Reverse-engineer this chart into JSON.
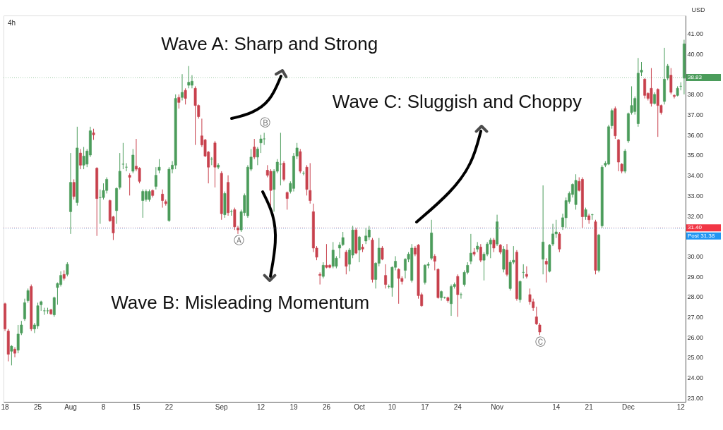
{
  "chart_data": {
    "type": "candlestick",
    "title": "4h",
    "ylabel": "USD",
    "categories": [
      "18",
      null,
      null,
      null,
      null,
      null,
      null,
      null,
      null,
      null,
      "25",
      null,
      null,
      null,
      null,
      null,
      null,
      null,
      null,
      null,
      "Aug",
      null,
      null,
      null,
      null,
      null,
      null,
      null,
      null,
      null,
      "8",
      null,
      null,
      null,
      null,
      null,
      null,
      null,
      null,
      null,
      "15",
      null,
      null,
      null,
      null,
      null,
      null,
      null,
      null,
      null,
      "22",
      null,
      null,
      null,
      null,
      null,
      null,
      null,
      null,
      null,
      null,
      null,
      null,
      null,
      null,
      null,
      "Sep",
      null,
      null,
      null,
      null,
      null,
      null,
      null,
      null,
      null,
      null,
      null,
      "12",
      null,
      null,
      null,
      null,
      null,
      null,
      null,
      null,
      null,
      "19",
      null,
      null,
      null,
      null,
      null,
      null,
      null,
      null,
      null,
      "26",
      null,
      null,
      null,
      null,
      null,
      null,
      null,
      null,
      null,
      "Oct",
      null,
      null,
      null,
      null,
      null,
      null,
      null,
      null,
      null,
      "10",
      null,
      null,
      null,
      null,
      null,
      null,
      null,
      null,
      null,
      "17",
      null,
      null,
      null,
      null,
      null,
      null,
      null,
      null,
      null,
      "24",
      null,
      null,
      null,
      null,
      null,
      null,
      null,
      null,
      null,
      null,
      null,
      "Nov",
      null,
      null,
      null,
      null,
      null,
      null,
      null,
      null,
      null,
      null,
      null,
      null,
      null,
      null,
      null,
      null,
      null,
      "14",
      null,
      null,
      null,
      null,
      null,
      null,
      null,
      null,
      null,
      "21",
      null,
      null,
      null,
      null,
      null,
      null,
      null,
      null,
      null,
      null,
      null,
      "Dec",
      null,
      null,
      null,
      null,
      null,
      null,
      null,
      null,
      null,
      null,
      null,
      null,
      null,
      null,
      null,
      "12",
      null
    ],
    "ohlc": [
      [
        27.65,
        27.7,
        26.3,
        26.4
      ],
      [
        26.3,
        26.4,
        24.8,
        25.15
      ],
      [
        25.3,
        25.6,
        24.6,
        25.55
      ],
      [
        25.4,
        25.5,
        25.0,
        25.2
      ],
      [
        25.35,
        26.6,
        25.2,
        26.15
      ],
      [
        26.2,
        26.8,
        26.1,
        26.6
      ],
      [
        26.9,
        27.9,
        26.8,
        27.7
      ],
      [
        27.8,
        28.4,
        27.7,
        28.3
      ],
      [
        28.5,
        28.6,
        26.3,
        26.4
      ],
      [
        26.4,
        26.7,
        26.2,
        26.6
      ],
      [
        26.55,
        27.7,
        26.4,
        27.55
      ],
      [
        27.6,
        27.8,
        27.3,
        27.75
      ],
      [
        27.3,
        27.45,
        27.1,
        27.3
      ],
      [
        27.3,
        27.45,
        27.15,
        27.3
      ],
      [
        27.35,
        27.4,
        27.1,
        27.15
      ],
      [
        27.1,
        28.0,
        27.0,
        27.95
      ],
      [
        28.45,
        28.7,
        27.6,
        28.65
      ],
      [
        28.6,
        29.25,
        28.5,
        29.05
      ],
      [
        29.1,
        29.3,
        28.8,
        28.9
      ],
      [
        29.1,
        29.7,
        29.0,
        29.6
      ],
      [
        32.2,
        35.1,
        31.1,
        33.65
      ],
      [
        33.65,
        33.8,
        32.8,
        32.95
      ],
      [
        32.65,
        36.4,
        32.5,
        35.35
      ],
      [
        35.1,
        35.3,
        34.3,
        34.5
      ],
      [
        34.5,
        35.4,
        34.3,
        34.95
      ],
      [
        34.55,
        35.3,
        34.4,
        35.2
      ],
      [
        35.0,
        36.4,
        34.9,
        36.2
      ],
      [
        36.1,
        36.3,
        35.75,
        36.0
      ],
      [
        34.35,
        34.4,
        31.0,
        32.85
      ],
      [
        32.9,
        33.3,
        31.6,
        32.9
      ],
      [
        32.9,
        33.6,
        32.8,
        33.25
      ],
      [
        33.25,
        33.9,
        33.1,
        33.8
      ],
      [
        32.75,
        32.8,
        31.7,
        31.75
      ],
      [
        31.95,
        32.0,
        30.8,
        31.15
      ],
      [
        32.25,
        33.4,
        31.6,
        33.35
      ],
      [
        33.4,
        35.1,
        33.3,
        34.2
      ],
      [
        34.55,
        35.6,
        34.3,
        34.55
      ],
      [
        34.4,
        34.6,
        34.2,
        34.4
      ],
      [
        34.0,
        34.1,
        33.0,
        33.9
      ],
      [
        34.2,
        35.3,
        34.1,
        35.0
      ],
      [
        34.45,
        35.8,
        34.2,
        34.3
      ],
      [
        34.35,
        34.4,
        33.6,
        33.7
      ],
      [
        32.75,
        33.3,
        31.9,
        33.2
      ],
      [
        32.8,
        33.3,
        32.7,
        33.2
      ],
      [
        32.8,
        33.3,
        32.7,
        33.2
      ],
      [
        33.25,
        33.3,
        32.9,
        33.0
      ],
      [
        33.45,
        34.4,
        33.3,
        34.0
      ],
      [
        34.25,
        34.8,
        34.1,
        34.4
      ],
      [
        33.07,
        33.3,
        32.4,
        32.75
      ],
      [
        32.7,
        32.8,
        32.5,
        32.6
      ],
      [
        31.76,
        34.4,
        31.7,
        34.3
      ],
      [
        34.3,
        34.7,
        34.1,
        34.5
      ],
      [
        34.5,
        38.0,
        34.3,
        37.8
      ],
      [
        37.85,
        38.0,
        37.3,
        37.6
      ],
      [
        37.85,
        39.0,
        37.7,
        38.1
      ],
      [
        38.2,
        38.3,
        37.5,
        37.8
      ],
      [
        38.45,
        39.4,
        38.3,
        38.6
      ],
      [
        38.45,
        38.95,
        38.3,
        38.65
      ],
      [
        38.3,
        38.4,
        35.5,
        37.45
      ],
      [
        37.45,
        37.5,
        36.8,
        36.9
      ],
      [
        35.95,
        36.8,
        35.4,
        35.5
      ],
      [
        35.75,
        35.8,
        34.9,
        34.95
      ],
      [
        35.15,
        35.2,
        33.6,
        34.4
      ],
      [
        34.8,
        34.9,
        34.5,
        34.8
      ],
      [
        35.6,
        35.7,
        33.4,
        34.4
      ],
      [
        34.4,
        34.6,
        34.3,
        34.5
      ],
      [
        34.1,
        34.2,
        31.8,
        32.1
      ],
      [
        32.05,
        33.2,
        31.9,
        33.1
      ],
      [
        33.65,
        34.0,
        32.0,
        32.15
      ],
      [
        32.2,
        32.3,
        32.0,
        32.2
      ],
      [
        32.3,
        32.4,
        31.3,
        31.45
      ],
      [
        31.4,
        31.5,
        31.1,
        31.3
      ],
      [
        31.3,
        32.3,
        31.2,
        32.2
      ],
      [
        32.15,
        33.1,
        32.0,
        33.0
      ],
      [
        32.0,
        34.5,
        31.9,
        34.4
      ],
      [
        34.3,
        35.3,
        34.2,
        34.9
      ],
      [
        35.4,
        35.8,
        34.8,
        34.9
      ],
      [
        34.9,
        35.4,
        34.5,
        35.3
      ],
      [
        35.6,
        36.0,
        35.1,
        35.8
      ],
      [
        35.8,
        36.1,
        35.5,
        35.8
      ],
      [
        34.25,
        34.5,
        33.9,
        34.0
      ],
      [
        34.2,
        34.3,
        32.5,
        33.25
      ],
      [
        33.3,
        34.3,
        32.2,
        34.2
      ],
      [
        34.2,
        34.8,
        34.1,
        34.65
      ],
      [
        34.55,
        36.1,
        33.5,
        34.55
      ],
      [
        34.6,
        34.7,
        33.7,
        33.8
      ],
      [
        33.15,
        33.2,
        32.3,
        32.85
      ],
      [
        33.2,
        33.7,
        33.1,
        33.6
      ],
      [
        33.35,
        35.1,
        33.2,
        34.95
      ],
      [
        34.95,
        35.6,
        34.8,
        35.35
      ],
      [
        35.17,
        35.3,
        34.1,
        34.2
      ],
      [
        34.1,
        34.2,
        34.0,
        34.1
      ],
      [
        34.4,
        34.5,
        33.0,
        33.3
      ],
      [
        33.25,
        34.6,
        32.6,
        32.75
      ],
      [
        32.2,
        32.6,
        30.2,
        30.4
      ],
      [
        30.4,
        30.5,
        29.8,
        29.95
      ],
      [
        29.1,
        29.2,
        28.6,
        29.05
      ],
      [
        29.0,
        29.7,
        28.9,
        29.55
      ],
      [
        29.55,
        30.6,
        29.4,
        29.45
      ],
      [
        29.55,
        29.6,
        29.4,
        29.45
      ],
      [
        29.5,
        30.7,
        29.4,
        30.3
      ],
      [
        29.5,
        30.0,
        29.4,
        29.9
      ],
      [
        30.4,
        30.7,
        29.9,
        30.55
      ],
      [
        30.57,
        31.2,
        30.5,
        30.92
      ],
      [
        30.2,
        30.3,
        29.1,
        29.5
      ],
      [
        29.6,
        30.4,
        29.25,
        30.3
      ],
      [
        30.05,
        31.5,
        29.9,
        31.3
      ],
      [
        31.3,
        31.4,
        30.1,
        30.15
      ],
      [
        30.3,
        31.0,
        29.7,
        30.95
      ],
      [
        30.45,
        30.6,
        30.2,
        30.35
      ],
      [
        30.75,
        31.4,
        30.6,
        31.0
      ],
      [
        30.95,
        31.5,
        30.8,
        31.3
      ],
      [
        30.8,
        30.9,
        28.7,
        28.85
      ],
      [
        28.85,
        29.7,
        28.4,
        29.65
      ],
      [
        29.65,
        30.9,
        29.5,
        30.4
      ],
      [
        30.4,
        30.5,
        29.8,
        29.85
      ],
      [
        29.05,
        29.6,
        28.4,
        28.6
      ],
      [
        28.5,
        28.6,
        28.4,
        28.5
      ],
      [
        28.45,
        29.5,
        28.0,
        29.45
      ],
      [
        29.45,
        30.0,
        29.3,
        29.75
      ],
      [
        29.35,
        29.4,
        27.65,
        28.9
      ],
      [
        28.9,
        29.0,
        28.6,
        28.75
      ],
      [
        29.3,
        29.9,
        28.9,
        29.85
      ],
      [
        29.85,
        30.2,
        29.7,
        30.1
      ],
      [
        28.8,
        30.6,
        28.7,
        30.4
      ],
      [
        30.4,
        30.5,
        30.0,
        30.1
      ],
      [
        30.55,
        30.6,
        27.9,
        28.05
      ],
      [
        28.1,
        28.2,
        27.5,
        27.55
      ],
      [
        28.7,
        29.6,
        28.6,
        29.55
      ],
      [
        29.55,
        29.7,
        29.4,
        29.6
      ],
      [
        29.9,
        31.8,
        29.8,
        31.15
      ],
      [
        30.0,
        30.1,
        29.3,
        29.75
      ],
      [
        29.35,
        29.4,
        27.9,
        27.95
      ],
      [
        27.95,
        28.3,
        27.8,
        28.25
      ],
      [
        27.95,
        28.0,
        27.9,
        27.95
      ],
      [
        27.95,
        28.0,
        27.7,
        27.8
      ],
      [
        27.65,
        28.6,
        27.05,
        28.5
      ],
      [
        28.5,
        28.7,
        28.4,
        28.6
      ],
      [
        29.0,
        29.1,
        27.0,
        28.1
      ],
      [
        28.1,
        28.2,
        27.9,
        28.1
      ],
      [
        28.6,
        29.3,
        28.5,
        29.2
      ],
      [
        29.2,
        29.7,
        29.1,
        29.55
      ],
      [
        29.75,
        31.1,
        29.6,
        30.15
      ],
      [
        30.2,
        30.4,
        30.0,
        30.1
      ],
      [
        30.35,
        30.7,
        30.2,
        30.5
      ],
      [
        30.45,
        30.6,
        29.7,
        29.8
      ],
      [
        29.8,
        30.2,
        28.8,
        30.1
      ],
      [
        30.1,
        30.7,
        30.0,
        30.6
      ],
      [
        30.6,
        30.9,
        29.9,
        30.8
      ],
      [
        30.8,
        30.9,
        30.2,
        30.4
      ],
      [
        30.6,
        32.05,
        30.5,
        31.7
      ],
      [
        30.55,
        30.6,
        30.1,
        30.2
      ],
      [
        29.35,
        30.5,
        29.2,
        30.35
      ],
      [
        30.3,
        30.6,
        29.0,
        29.1
      ],
      [
        28.4,
        29.8,
        28.3,
        29.7
      ],
      [
        29.7,
        30.5,
        29.6,
        29.8
      ],
      [
        30.2,
        30.3,
        27.8,
        27.9
      ],
      [
        27.85,
        28.8,
        27.7,
        28.75
      ],
      [
        29.2,
        29.6,
        28.9,
        29.2
      ],
      [
        29.1,
        29.5,
        28.9,
        29.0
      ],
      [
        28.1,
        28.4,
        27.6,
        27.75
      ],
      [
        27.75,
        27.9,
        27.3,
        27.45
      ],
      [
        27.0,
        27.5,
        26.6,
        26.65
      ],
      [
        26.6,
        26.7,
        26.1,
        26.25
      ],
      [
        29.85,
        33.5,
        29.1,
        30.7
      ],
      [
        29.75,
        29.9,
        28.7,
        29.6
      ],
      [
        29.25,
        30.6,
        29.2,
        30.55
      ],
      [
        30.6,
        31.6,
        30.5,
        31.1
      ],
      [
        31.1,
        31.8,
        30.9,
        31.2
      ],
      [
        31.1,
        31.2,
        30.2,
        30.35
      ],
      [
        31.45,
        32.1,
        31.3,
        31.9
      ],
      [
        31.9,
        32.9,
        31.4,
        32.75
      ],
      [
        32.7,
        33.2,
        32.6,
        33.1
      ],
      [
        33.05,
        33.6,
        32.9,
        33.55
      ],
      [
        32.55,
        34.05,
        32.3,
        33.75
      ],
      [
        33.7,
        33.9,
        33.2,
        33.25
      ],
      [
        33.8,
        33.9,
        31.4,
        31.95
      ],
      [
        31.95,
        32.4,
        31.8,
        32.3
      ],
      [
        32.0,
        32.1,
        31.6,
        31.8
      ],
      [
        32.05,
        32.1,
        31.8,
        32.05
      ],
      [
        31.7,
        31.8,
        29.1,
        29.3
      ],
      [
        29.3,
        31.1,
        29.2,
        31.05
      ],
      [
        31.5,
        34.5,
        31.4,
        34.4
      ],
      [
        34.5,
        34.7,
        34.4,
        34.6
      ],
      [
        34.55,
        36.5,
        34.5,
        36.4
      ],
      [
        36.45,
        37.3,
        36.3,
        37.2
      ],
      [
        37.3,
        37.4,
        35.8,
        35.95
      ],
      [
        35.75,
        35.8,
        34.2,
        34.65
      ],
      [
        34.55,
        34.6,
        34.1,
        34.2
      ],
      [
        34.2,
        35.3,
        34.1,
        35.2
      ],
      [
        35.7,
        37.1,
        35.6,
        37.05
      ],
      [
        37.1,
        38.4,
        37.0,
        37.45
      ],
      [
        37.15,
        37.9,
        37.0,
        37.8
      ],
      [
        36.55,
        39.8,
        36.4,
        39.05
      ],
      [
        39.1,
        39.6,
        38.9,
        39.2
      ],
      [
        38.75,
        38.8,
        37.8,
        37.95
      ],
      [
        38.05,
        38.1,
        37.7,
        37.8
      ],
      [
        38.3,
        39.3,
        37.4,
        37.55
      ],
      [
        37.55,
        38.1,
        37.5,
        38.0
      ],
      [
        38.25,
        38.3,
        35.9,
        37.45
      ],
      [
        37.45,
        37.5,
        37.0,
        37.1
      ],
      [
        37.65,
        40.3,
        37.5,
        38.75
      ],
      [
        38.8,
        39.5,
        38.7,
        39.4
      ],
      [
        38.95,
        39.3,
        38.0,
        38.1
      ],
      [
        37.95,
        38.0,
        37.8,
        37.9
      ],
      [
        37.95,
        38.4,
        37.9,
        38.3
      ],
      [
        38.4,
        38.6,
        38.2,
        38.4
      ],
      [
        38.8,
        40.7,
        38.0,
        40.5
      ]
    ],
    "colors": [
      "#c8414d",
      "#c8414d",
      "#4b9c5b",
      "#c8414d",
      "#4b9c5b",
      "#4b9c5b",
      "#4b9c5b",
      "#4b9c5b",
      "#c8414d",
      "#4b9c5b",
      "#4b9c5b",
      "#4b9c5b",
      "#4b9c5b",
      "#4b9c5b",
      "#c8414d",
      "#4b9c5b",
      "#4b9c5b",
      "#4b9c5b",
      "#c8414d",
      "#4b9c5b",
      "#4b9c5b",
      "#c8414d",
      "#4b9c5b",
      "#c8414d",
      "#4b9c5b",
      "#4b9c5b",
      "#4b9c5b",
      "#c8414d",
      "#c8414d",
      "#4b9c5b",
      "#4b9c5b",
      "#4b9c5b",
      "#c8414d",
      "#c8414d",
      "#4b9c5b",
      "#4b9c5b",
      "#4b9c5b",
      "#4b9c5b",
      "#c8414d",
      "#4b9c5b",
      "#c8414d",
      "#c8414d",
      "#4b9c5b",
      "#4b9c5b",
      "#4b9c5b",
      "#c8414d",
      "#4b9c5b",
      "#4b9c5b",
      "#c8414d",
      "#c8414d",
      "#4b9c5b",
      "#4b9c5b",
      "#4b9c5b",
      "#c8414d",
      "#4b9c5b",
      "#c8414d",
      "#4b9c5b",
      "#4b9c5b",
      "#c8414d",
      "#c8414d",
      "#c8414d",
      "#c8414d",
      "#c8414d",
      "#4b9c5b",
      "#c8414d",
      "#4b9c5b",
      "#c8414d",
      "#4b9c5b",
      "#c8414d",
      "#4b9c5b",
      "#c8414d",
      "#c8414d",
      "#4b9c5b",
      "#4b9c5b",
      "#4b9c5b",
      "#4b9c5b",
      "#c8414d",
      "#4b9c5b",
      "#4b9c5b",
      "#4b9c5b",
      "#c8414d",
      "#c8414d",
      "#4b9c5b",
      "#4b9c5b",
      "#4b9c5b",
      "#c8414d",
      "#c8414d",
      "#4b9c5b",
      "#4b9c5b",
      "#4b9c5b",
      "#c8414d",
      "#4b9c5b",
      "#c8414d",
      "#c8414d",
      "#c8414d",
      "#c8414d",
      "#c8414d",
      "#4b9c5b",
      "#c8414d",
      "#c8414d",
      "#4b9c5b",
      "#4b9c5b",
      "#4b9c5b",
      "#4b9c5b",
      "#c8414d",
      "#4b9c5b",
      "#4b9c5b",
      "#c8414d",
      "#4b9c5b",
      "#c8414d",
      "#4b9c5b",
      "#4b9c5b",
      "#c8414d",
      "#4b9c5b",
      "#4b9c5b",
      "#c8414d",
      "#c8414d",
      "#4b9c5b",
      "#4b9c5b",
      "#4b9c5b",
      "#c8414d",
      "#c8414d",
      "#4b9c5b",
      "#4b9c5b",
      "#4b9c5b",
      "#c8414d",
      "#c8414d",
      "#c8414d",
      "#4b9c5b",
      "#4b9c5b",
      "#4b9c5b",
      "#c8414d",
      "#c8414d",
      "#4b9c5b",
      "#4b9c5b",
      "#c8414d",
      "#4b9c5b",
      "#4b9c5b",
      "#c8414d",
      "#4b9c5b",
      "#4b9c5b",
      "#4b9c5b",
      "#4b9c5b",
      "#c8414d",
      "#4b9c5b",
      "#c8414d",
      "#4b9c5b",
      "#4b9c5b",
      "#4b9c5b",
      "#c8414d",
      "#4b9c5b",
      "#c8414d",
      "#4b9c5b",
      "#c8414d",
      "#4b9c5b",
      "#4b9c5b",
      "#c8414d",
      "#4b9c5b",
      "#4b9c5b",
      "#c8414d",
      "#c8414d",
      "#c8414d",
      "#c8414d",
      "#c8414d",
      "#4b9c5b",
      "#c8414d",
      "#4b9c5b",
      "#4b9c5b",
      "#4b9c5b",
      "#c8414d",
      "#4b9c5b",
      "#4b9c5b",
      "#4b9c5b",
      "#4b9c5b",
      "#4b9c5b",
      "#c8414d",
      "#c8414d",
      "#4b9c5b",
      "#c8414d",
      "#4b9c5b",
      "#c8414d",
      "#4b9c5b",
      "#4b9c5b",
      "#4b9c5b",
      "#4b9c5b",
      "#4b9c5b",
      "#c8414d",
      "#c8414d",
      "#c8414d",
      "#4b9c5b",
      "#4b9c5b",
      "#4b9c5b",
      "#4b9c5b",
      "#4b9c5b",
      "#4b9c5b",
      "#c8414d",
      "#c8414d",
      "#c8414d",
      "#4b9c5b",
      "#c8414d",
      "#c8414d",
      "#4b9c5b",
      "#4b9c5b",
      "#c8414d",
      "#c8414d",
      "#4b9c5b",
      "#4b9c5b",
      "#4b9c5b"
    ],
    "ylim": [
      22.8,
      41.9
    ],
    "yticks": [
      {
        "value": 23,
        "label": "23.00"
      },
      {
        "value": 24,
        "label": "24.00"
      },
      {
        "value": 25,
        "label": "25.00"
      },
      {
        "value": 26,
        "label": "26.00"
      },
      {
        "value": 27,
        "label": "27.00"
      },
      {
        "value": 28,
        "label": "28.00"
      },
      {
        "value": 29,
        "label": "29.00"
      },
      {
        "value": 30,
        "label": "30.00"
      },
      {
        "value": 32,
        "label": "32.00"
      },
      {
        "value": 33,
        "label": "33.00"
      },
      {
        "value": 34,
        "label": "34.00"
      },
      {
        "value": 35,
        "label": "35.00"
      },
      {
        "value": 36,
        "label": "36.00"
      },
      {
        "value": 37,
        "label": "37.00"
      },
      {
        "value": 38,
        "label": "38.00"
      },
      {
        "value": 40,
        "label": "40.00"
      },
      {
        "value": 41,
        "label": "41.00"
      }
    ],
    "grid": false,
    "ref_lines": [
      {
        "axis": "y",
        "value": 31.4,
        "label": "31.40",
        "color": "#f23645"
      },
      {
        "axis": "y",
        "value": 31.38,
        "label": "Post 31.38",
        "color": "#2196f3"
      },
      {
        "axis": "y",
        "value": 38.83,
        "label": "38.83",
        "color": "#4b9c5b"
      }
    ],
    "annotations": [
      "Wave A: Sharp and Strong",
      "Wave B: Misleading Momentum",
      "Wave C: Sluggish and Choppy",
      "Ⓐ",
      "Ⓑ",
      "Ⓒ"
    ]
  }
}
